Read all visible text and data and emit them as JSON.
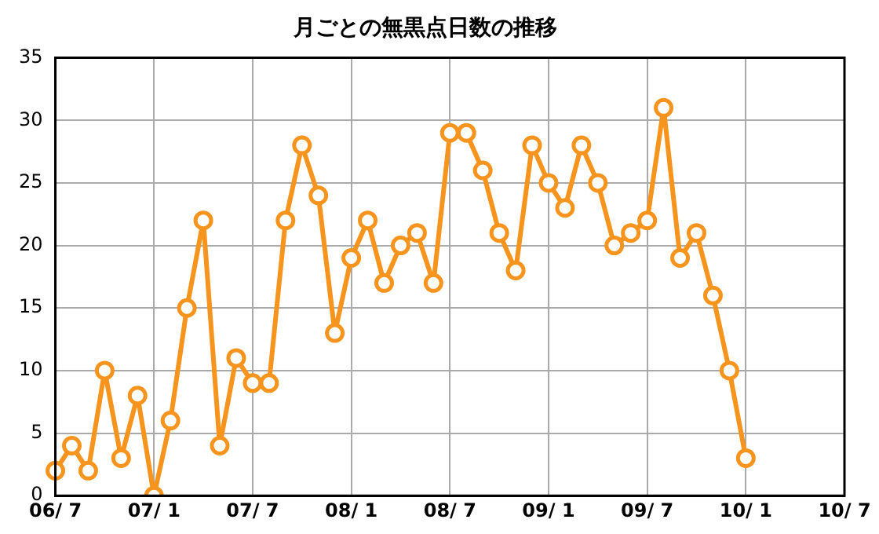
{
  "chart_data": {
    "type": "line",
    "title": "月ごとの無黒点日数の推移",
    "categories": [
      "06/ 7",
      null,
      null,
      null,
      null,
      null,
      "07/ 1",
      null,
      null,
      null,
      null,
      null,
      "07/ 7",
      null,
      null,
      null,
      null,
      null,
      "08/ 1",
      null,
      null,
      null,
      null,
      null,
      "08/ 7",
      null,
      null,
      null,
      null,
      null,
      "09/ 1",
      null,
      null,
      null,
      null,
      null,
      "09/ 7",
      null,
      null,
      null,
      null,
      null,
      "10/ 1",
      null,
      null,
      null,
      null,
      null,
      "10/ 7"
    ],
    "series": [
      {
        "color": "#f7941d",
        "values": [
          2,
          4,
          2,
          10,
          3,
          8,
          0,
          6,
          15,
          22,
          4,
          11,
          9,
          9,
          22,
          28,
          24,
          13,
          19,
          22,
          17,
          20,
          21,
          17,
          29,
          29,
          26,
          21,
          18,
          28,
          25,
          23,
          28,
          25,
          20,
          21,
          22,
          31,
          19,
          21,
          16,
          10,
          3,
          null,
          null,
          null,
          null,
          null,
          null
        ]
      }
    ],
    "ylim": [
      0,
      35
    ],
    "yticks": [
      0,
      5,
      10,
      15,
      20,
      25,
      30,
      35
    ],
    "grid": true,
    "legend": false,
    "marker": "circle",
    "line_style": "solid"
  }
}
